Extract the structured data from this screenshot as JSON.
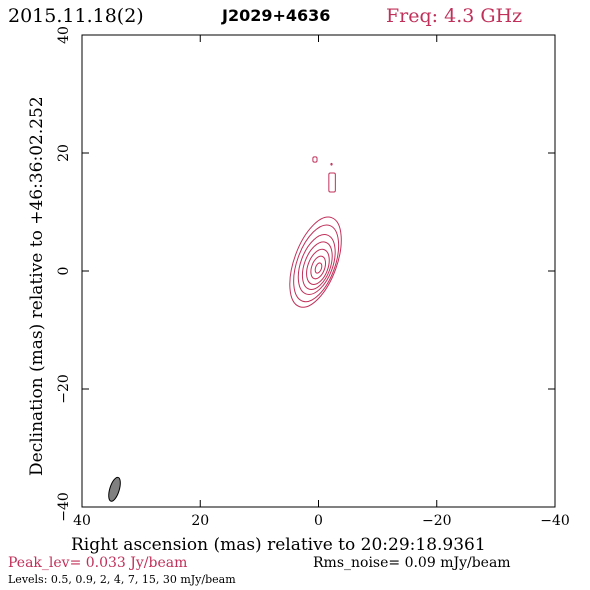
{
  "header": {
    "date": "2015.11.18(2)",
    "source": "J2029+4636",
    "freq": "Freq: 4.3 GHz"
  },
  "footer": {
    "peak": "Peak_lev=  0.033 Jy/beam",
    "rms": "Rms_noise= 0.09 mJy/beam",
    "levels": "Levels: 0.5, 0.9,   2,   4,   7,  15,  30 mJy/beam"
  },
  "colors": {
    "contour": "#c0305a",
    "header_freq": "#c0305a",
    "peak_text": "#c0305a",
    "beam_fill": "#808080"
  },
  "chart_data": {
    "type": "contour",
    "xlabel": "Right ascension (mas) relative to 20:29:18.9361",
    "ylabel": "Declination (mas) relative to +46:36:02.252",
    "xlim": [
      40,
      -40
    ],
    "ylim": [
      -40,
      40
    ],
    "xticks": [
      40,
      20,
      0,
      -20,
      -40
    ],
    "yticks": [
      -40,
      -20,
      0,
      20,
      40
    ],
    "xtick_labels": [
      "40",
      "20",
      "0",
      "−20",
      "−40"
    ],
    "ytick_labels": [
      "−40",
      "−20",
      "0",
      "20",
      "40"
    ],
    "levels_mJy": [
      0.5,
      0.9,
      2,
      4,
      7,
      15,
      30
    ],
    "peak_Jy_per_beam": 0.033,
    "rms_mJy_per_beam": 0.09,
    "core": {
      "x": 0,
      "y": 0.5
    },
    "contours": [
      {
        "level": 0.5,
        "cx": 0.5,
        "cy": 1.5,
        "rx": 3.6,
        "ry": 8.0,
        "angle": 20
      },
      {
        "level": 0.9,
        "cx": 0.4,
        "cy": 1.3,
        "rx": 3.2,
        "ry": 6.8,
        "angle": 20
      },
      {
        "level": 2,
        "cx": 0.3,
        "cy": 1.1,
        "rx": 2.7,
        "ry": 5.3,
        "angle": 20
      },
      {
        "level": 4,
        "cx": 0.2,
        "cy": 0.9,
        "rx": 2.2,
        "ry": 4.2,
        "angle": 20
      },
      {
        "level": 7,
        "cx": 0.1,
        "cy": 0.7,
        "rx": 1.7,
        "ry": 3.1,
        "angle": 20
      },
      {
        "level": 15,
        "cx": 0.05,
        "cy": 0.6,
        "rx": 1.1,
        "ry": 2.0,
        "angle": 20
      },
      {
        "level": 30,
        "cx": 0.0,
        "cy": 0.5,
        "rx": 0.5,
        "ry": 0.9,
        "angle": 20
      }
    ],
    "jet_components": [
      {
        "x": -2.3,
        "y": 15.0,
        "w": 1.1,
        "h": 3.2
      },
      {
        "x": 0.6,
        "y": 18.9,
        "w": 0.7,
        "h": 0.9
      },
      {
        "x": -2.2,
        "y": 18.1,
        "w": 0.2,
        "h": 0.3
      }
    ],
    "beam": {
      "x": 34.5,
      "y": -37.0,
      "major": 4.2,
      "minor": 1.6,
      "pa_deg": -17
    }
  }
}
